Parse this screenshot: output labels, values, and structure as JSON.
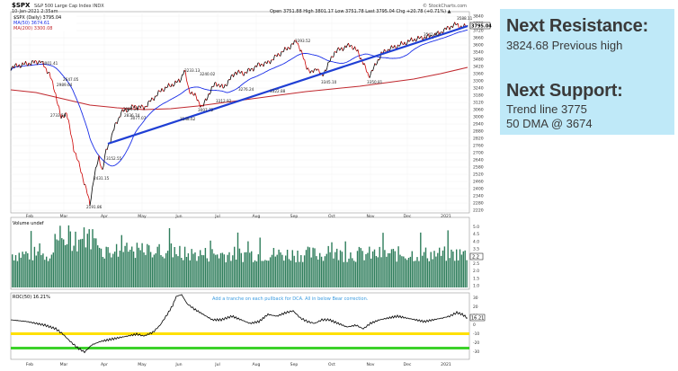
{
  "header": {
    "symbol": "$SPX",
    "exchange": "S&P 500 Large Cap Index  INDX",
    "date": "10-Jan-2021 2:35am",
    "copyright": "© StockCharts.com",
    "ohlc": "Open 3751.88  High 3801.17  Low 3751.78  Last 3795.04  Chg +20.78 (+0.71%) ▲"
  },
  "legend": {
    "price": "$SPX (Daily) 3795.04",
    "ma1": "MA(50) 3674.61",
    "ma2": "MA(200) 3300.08"
  },
  "price_axis": [
    "3840",
    "3780",
    "3720",
    "3660",
    "3600",
    "3540",
    "3480",
    "3420",
    "3360",
    "3300",
    "3240",
    "3180",
    "3120",
    "3060",
    "3000",
    "2940",
    "2880",
    "2820",
    "2760",
    "2700",
    "2640",
    "2580",
    "2520",
    "2460",
    "2400",
    "2340",
    "2280",
    "2220"
  ],
  "price_label": "3795.04",
  "annotations": [
    "3393.52",
    "3380.16",
    "3337.77",
    "3240.02",
    "3233.13",
    "3154.74",
    "3007.72",
    "3004.08",
    "2947.10",
    "2914.28",
    "2863.39",
    "2836.74",
    "2817.80",
    "2797.98",
    "2795.05",
    "2761.63",
    "2733.56",
    "2647.05",
    "2431.15",
    "2191.86",
    "3588.11",
    "3541.93",
    "3484.58",
    "3345.10",
    "3350.81",
    "3276.24",
    "3322.88",
    "3312.92",
    "3234.10",
    "3202.26",
    "3211.51",
    "3101.54",
    "3049.17",
    "3148.62",
    "3003.23",
    "3021.98",
    "3077.07",
    "3033.03",
    "3163.41",
    "3045.48",
    "2985.16",
    "2967.35",
    "3001.41",
    "2989.64",
    "3152.55"
  ],
  "x_months": [
    "Feb",
    "Mar",
    "Apr",
    "May",
    "Jun",
    "Jul",
    "Aug",
    "Sep",
    "Oct",
    "Nov",
    "Dec",
    "2021"
  ],
  "volume": {
    "legend": "Volume undef",
    "axis": [
      "5.0",
      "4.5",
      "4.0",
      "3.5",
      "3.0",
      "2.5",
      "2.0",
      "1.5",
      "1.0"
    ],
    "label": "2.2"
  },
  "roc": {
    "legend": "ROC(50) 16.21%",
    "label": "16.21",
    "note": "Add a tranche on each pullback for DCA. All in below Bear correction.",
    "axis": [
      "30",
      "20",
      "10",
      "0",
      "-10",
      "-20",
      "-30"
    ]
  },
  "panel": {
    "resistance_heading": "Next Resistance:",
    "resistance_value": "3824.68 Previous high",
    "support_heading": "Next Support:",
    "support_line1": "Trend line 3775",
    "support_line2": "50 DMA @ 3674"
  },
  "colors": {
    "price_up": "#000000",
    "price_down": "#cc0000",
    "ma50": "#1a2ee8",
    "ma200": "#c0282e",
    "trendline": "#1f3fd4",
    "volume": "#2e7d5b",
    "band_yellow": "#ffe000",
    "band_green": "#3cd22a",
    "note": "#3a9be0",
    "panel_bg": "#bfe9f8"
  }
}
